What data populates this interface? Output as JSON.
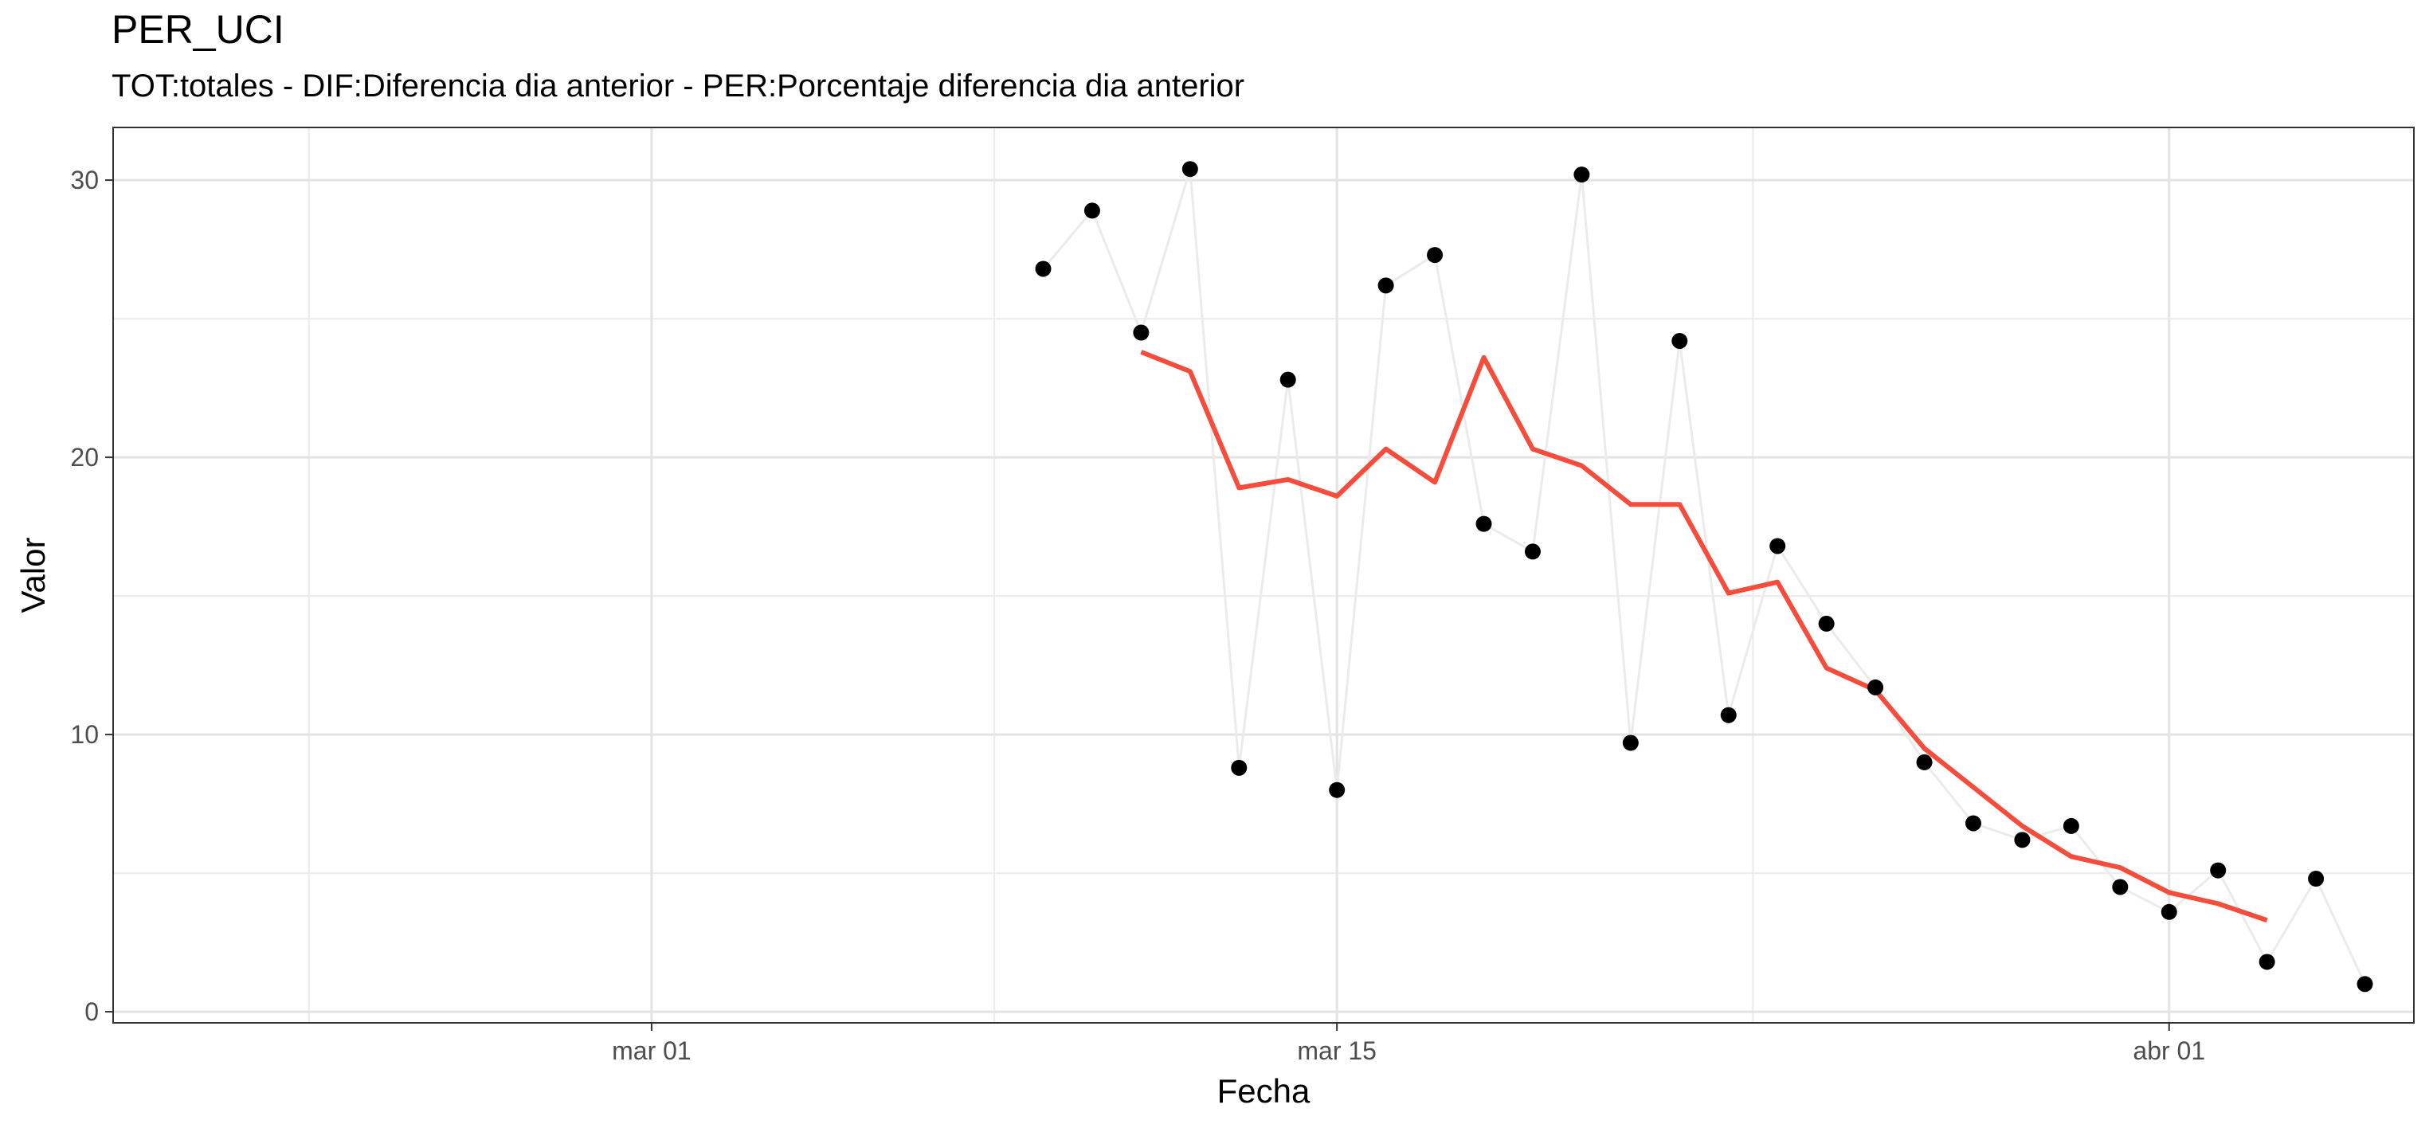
{
  "chart_data": {
    "type": "line",
    "title": "PER_UCI",
    "subtitle": "TOT:totales - DIF:Diferencia dia anterior - PER:Porcentaje diferencia dia anterior",
    "xlabel": "Fecha",
    "ylabel": "Valor",
    "x_ticks": [
      {
        "date": "2020-03-01",
        "label": "mar 01"
      },
      {
        "date": "2020-03-15",
        "label": "mar 15"
      },
      {
        "date": "2020-04-01",
        "label": "abr 01"
      }
    ],
    "y_ticks": [
      0,
      10,
      20,
      30
    ],
    "xlim": [
      "2020-02-19",
      "2020-04-06"
    ],
    "ylim": [
      -0.4,
      31.9
    ],
    "grid": true,
    "series": [
      {
        "kind": "points",
        "color": "#000000",
        "line_color": "#ebebeb",
        "x": [
          "2020-03-09",
          "2020-03-10",
          "2020-03-11",
          "2020-03-12",
          "2020-03-13",
          "2020-03-14",
          "2020-03-15",
          "2020-03-16",
          "2020-03-17",
          "2020-03-18",
          "2020-03-19",
          "2020-03-20",
          "2020-03-21",
          "2020-03-22",
          "2020-03-23",
          "2020-03-24",
          "2020-03-25",
          "2020-03-26",
          "2020-03-27",
          "2020-03-28",
          "2020-03-29",
          "2020-03-30",
          "2020-03-31",
          "2020-04-01",
          "2020-04-02",
          "2020-04-03",
          "2020-04-04",
          "2020-04-05"
        ],
        "values": [
          26.8,
          28.9,
          24.5,
          30.4,
          8.8,
          22.8,
          8.0,
          26.2,
          27.3,
          17.6,
          16.6,
          30.2,
          9.7,
          24.2,
          10.7,
          16.8,
          14.0,
          11.7,
          9.0,
          6.8,
          6.2,
          6.7,
          4.5,
          3.6,
          5.1,
          1.8,
          4.8,
          1.0
        ]
      },
      {
        "kind": "line",
        "color": "#f54c3c",
        "x": [
          "2020-03-11",
          "2020-03-12",
          "2020-03-13",
          "2020-03-14",
          "2020-03-15",
          "2020-03-16",
          "2020-03-17",
          "2020-03-18",
          "2020-03-19",
          "2020-03-20",
          "2020-03-21",
          "2020-03-22",
          "2020-03-23",
          "2020-03-24",
          "2020-03-25",
          "2020-03-26",
          "2020-03-27",
          "2020-03-28",
          "2020-03-29",
          "2020-03-30",
          "2020-03-31",
          "2020-04-01",
          "2020-04-02",
          "2020-04-03"
        ],
        "values": [
          23.8,
          23.1,
          18.9,
          19.2,
          18.6,
          20.3,
          19.1,
          23.6,
          20.3,
          19.7,
          18.3,
          18.3,
          15.1,
          15.5,
          12.4,
          11.6,
          9.5,
          8.1,
          6.7,
          5.6,
          5.2,
          4.3,
          3.9,
          3.3
        ]
      }
    ]
  }
}
